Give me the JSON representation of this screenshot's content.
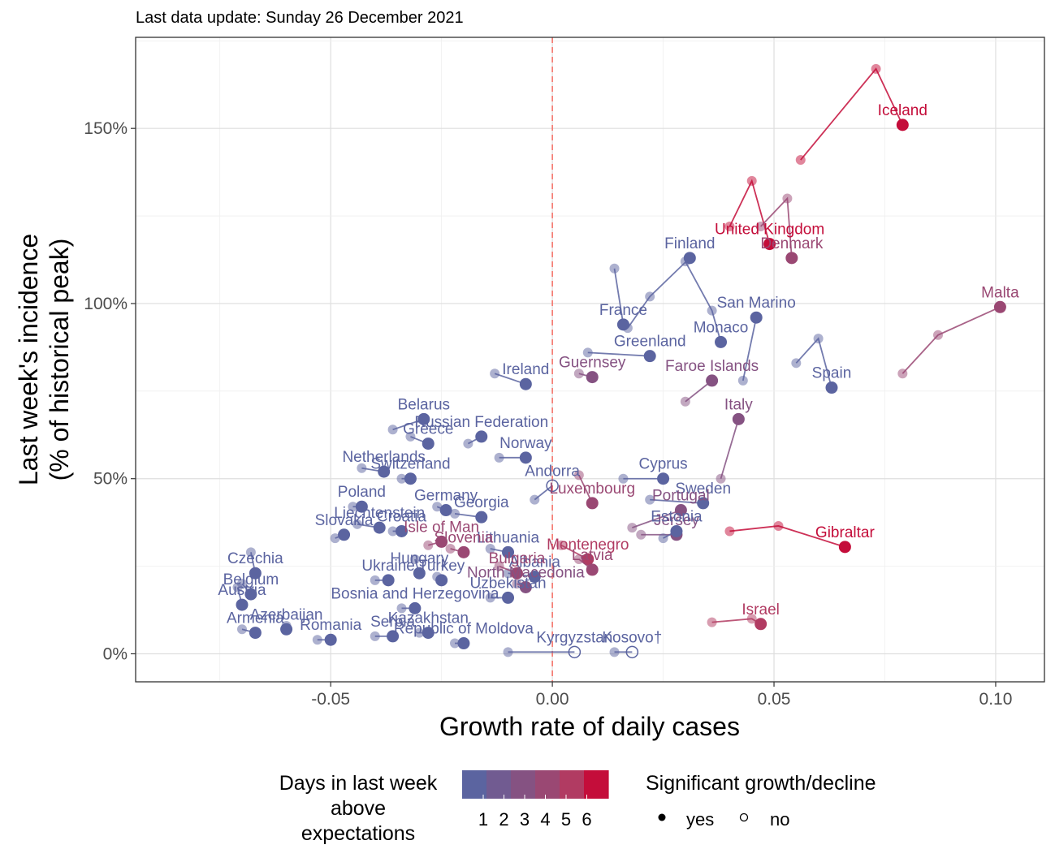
{
  "subtitle": "Last data update: Sunday 26 December 2021",
  "chart_data": {
    "type": "scatter",
    "title": "",
    "subtitle": "Last data update: Sunday 26 December 2021",
    "xlabel": "Growth rate of daily cases",
    "ylabel_line1": "Last week's incidence",
    "ylabel_line2": "(% of historical peak)",
    "xlim": [
      -0.094,
      0.111
    ],
    "ylim": [
      -0.08,
      1.76
    ],
    "x_ticks": [
      {
        "value": -0.05,
        "label": "-0.05"
      },
      {
        "value": 0.0,
        "label": "0.00"
      },
      {
        "value": 0.05,
        "label": "0.05"
      },
      {
        "value": 0.1,
        "label": "0.10"
      }
    ],
    "y_ticks": [
      {
        "value": 0.0,
        "label": "0%"
      },
      {
        "value": 0.5,
        "label": "50%"
      },
      {
        "value": 1.0,
        "label": "100%"
      },
      {
        "value": 1.5,
        "label": "150%"
      }
    ],
    "grid": true,
    "reference_line": {
      "x": 0.0,
      "style": "dashed",
      "color": "#f4736a"
    },
    "legend_color": {
      "title_lines": [
        "Days in last week",
        "above",
        "expectations"
      ],
      "labels": [
        "1",
        "2",
        "3",
        "4",
        "5",
        "6"
      ],
      "colors": [
        "#5b64a0",
        "#715b91",
        "#855282",
        "#9a4873",
        "#b13b62",
        "#c40d3a"
      ]
    },
    "legend_shape": {
      "title": "Significant growth/decline",
      "items": [
        {
          "label": "yes",
          "filled": true
        },
        {
          "label": "no",
          "filled": false
        }
      ]
    },
    "countries": [
      {
        "name": "Iceland",
        "level": 6,
        "sig": true,
        "label": "Iceland",
        "trail": [
          [
            0.056,
            1.41
          ],
          [
            0.073,
            1.67
          ],
          [
            0.079,
            1.51
          ]
        ]
      },
      {
        "name": "United Kingdom",
        "level": 6,
        "sig": true,
        "label": "United Kingdom",
        "trail": [
          [
            0.04,
            1.22
          ],
          [
            0.045,
            1.35
          ],
          [
            0.049,
            1.17
          ]
        ]
      },
      {
        "name": "Denmark",
        "level": 4,
        "sig": true,
        "label": "Denmark",
        "trail": [
          [
            0.047,
            1.22
          ],
          [
            0.053,
            1.3
          ],
          [
            0.054,
            1.13
          ]
        ]
      },
      {
        "name": "Malta",
        "level": 4,
        "sig": true,
        "label": "Malta",
        "trail": [
          [
            0.079,
            0.8
          ],
          [
            0.087,
            0.91
          ],
          [
            0.101,
            0.99
          ]
        ]
      },
      {
        "name": "Gibraltar",
        "level": 6,
        "sig": true,
        "label": "Gibraltar",
        "trail": [
          [
            0.04,
            0.35
          ],
          [
            0.051,
            0.365
          ],
          [
            0.066,
            0.305
          ]
        ]
      },
      {
        "name": "Israel",
        "level": 5,
        "sig": true,
        "label": "Israel",
        "trail": [
          [
            0.036,
            0.09
          ],
          [
            0.045,
            0.1
          ],
          [
            0.047,
            0.085
          ]
        ]
      },
      {
        "name": "Spain",
        "level": 1,
        "sig": true,
        "label": "Spain",
        "trail": [
          [
            0.055,
            0.83
          ],
          [
            0.06,
            0.9
          ],
          [
            0.063,
            0.76
          ]
        ]
      },
      {
        "name": "Monaco",
        "level": 1,
        "sig": true,
        "label": "Monaco",
        "trail": [
          [
            0.03,
            1.12
          ],
          [
            0.036,
            0.98
          ],
          [
            0.038,
            0.89
          ]
        ]
      },
      {
        "name": "Finland",
        "level": 1,
        "sig": true,
        "label": "Finland",
        "trail": [
          [
            0.017,
            0.93
          ],
          [
            0.022,
            1.02
          ],
          [
            0.031,
            1.13
          ]
        ]
      },
      {
        "name": "France",
        "level": 1,
        "sig": true,
        "label": "France",
        "trail": [
          [
            0.014,
            1.1
          ],
          [
            0.016,
            0.94
          ]
        ]
      },
      {
        "name": "San Marino",
        "level": 1,
        "sig": true,
        "label": "San Marino",
        "trail": [
          [
            0.043,
            0.78
          ],
          [
            0.046,
            0.96
          ]
        ]
      },
      {
        "name": "Greenland",
        "level": 1,
        "sig": true,
        "label": "Greenland",
        "trail": [
          [
            0.008,
            0.86
          ],
          [
            0.022,
            0.85
          ]
        ]
      },
      {
        "name": "Ireland",
        "level": 1,
        "sig": true,
        "label": "Ireland",
        "trail": [
          [
            -0.013,
            0.8
          ],
          [
            -0.006,
            0.77
          ]
        ]
      },
      {
        "name": "Faroe Islands",
        "level": 3,
        "sig": true,
        "label": "Faroe Islands",
        "trail": [
          [
            0.03,
            0.72
          ],
          [
            0.036,
            0.78
          ]
        ]
      },
      {
        "name": "Italy",
        "level": 3,
        "sig": true,
        "label": "Italy",
        "trail": [
          [
            0.038,
            0.5
          ],
          [
            0.042,
            0.67
          ]
        ]
      },
      {
        "name": "Cyprus",
        "level": 1,
        "sig": true,
        "label": "Cyprus",
        "trail": [
          [
            0.016,
            0.5
          ],
          [
            0.025,
            0.5
          ]
        ]
      },
      {
        "name": "Sweden",
        "level": 1,
        "sig": true,
        "label": "Sweden",
        "trail": [
          [
            0.022,
            0.44
          ],
          [
            0.034,
            0.43
          ]
        ]
      },
      {
        "name": "Luxembourg",
        "level": 4,
        "sig": true,
        "label": "Luxembourg",
        "trail": [
          [
            0.006,
            0.51
          ],
          [
            0.009,
            0.43
          ]
        ]
      },
      {
        "name": "Portugal",
        "level": 3,
        "sig": true,
        "label": "Portugal",
        "trail": [
          [
            0.018,
            0.36
          ],
          [
            0.029,
            0.41
          ]
        ]
      },
      {
        "name": "Jersey",
        "level": 3,
        "sig": true,
        "label": "Jersey",
        "trail": [
          [
            0.02,
            0.34
          ],
          [
            0.028,
            0.34
          ]
        ]
      },
      {
        "name": "Estonia",
        "level": 1,
        "sig": true,
        "label": "Estonia",
        "trail": [
          [
            0.025,
            0.33
          ],
          [
            0.028,
            0.35
          ]
        ]
      },
      {
        "name": "Montenegro",
        "level": 5,
        "sig": true,
        "label": "Montenegro",
        "trail": [
          [
            0.002,
            0.31
          ],
          [
            0.008,
            0.27
          ]
        ]
      },
      {
        "name": "Latvia",
        "level": 4,
        "sig": true,
        "label": "Latvia",
        "trail": [
          [
            0.006,
            0.27
          ],
          [
            0.009,
            0.24
          ]
        ]
      },
      {
        "name": "Albania",
        "level": 1,
        "sig": true,
        "label": "Albania",
        "trail": [
          [
            -0.01,
            0.23
          ],
          [
            -0.004,
            0.22
          ]
        ]
      },
      {
        "name": "Bulgaria",
        "level": 4,
        "sig": true,
        "label": "Bulgaria",
        "trail": [
          [
            -0.012,
            0.25
          ],
          [
            -0.008,
            0.23
          ]
        ]
      },
      {
        "name": "Lithuania",
        "level": 1,
        "sig": true,
        "label": "Lithuania",
        "trail": [
          [
            -0.014,
            0.3
          ],
          [
            -0.01,
            0.29
          ]
        ]
      },
      {
        "name": "Georgia",
        "level": 1,
        "sig": true,
        "label": "Georgia",
        "trail": [
          [
            -0.022,
            0.4
          ],
          [
            -0.016,
            0.39
          ]
        ]
      },
      {
        "name": "Andorra",
        "level": 1,
        "sig": false,
        "label": "Andorra",
        "trail": [
          [
            -0.004,
            0.44
          ],
          [
            0.0,
            0.48
          ]
        ]
      },
      {
        "name": "Norway",
        "level": 1,
        "sig": true,
        "label": "Norway",
        "trail": [
          [
            -0.012,
            0.56
          ],
          [
            -0.006,
            0.56
          ]
        ]
      },
      {
        "name": "Russian Federation",
        "level": 1,
        "sig": true,
        "label": "Russian Federation",
        "trail": [
          [
            -0.019,
            0.6
          ],
          [
            -0.016,
            0.62
          ]
        ]
      },
      {
        "name": "Guernsey",
        "level": 3,
        "sig": true,
        "label": "Guernsey",
        "trail": [
          [
            0.006,
            0.8
          ],
          [
            0.009,
            0.79
          ]
        ]
      },
      {
        "name": "Belarus",
        "level": 1,
        "sig": true,
        "label": "Belarus",
        "trail": [
          [
            -0.036,
            0.64
          ],
          [
            -0.029,
            0.67
          ]
        ]
      },
      {
        "name": "Greece",
        "level": 1,
        "sig": true,
        "label": "Greece",
        "trail": [
          [
            -0.032,
            0.62
          ],
          [
            -0.028,
            0.6
          ]
        ]
      },
      {
        "name": "Germany",
        "level": 1,
        "sig": true,
        "label": "Germany",
        "trail": [
          [
            -0.026,
            0.42
          ],
          [
            -0.024,
            0.41
          ]
        ]
      },
      {
        "name": "Netherlands",
        "level": 1,
        "sig": true,
        "label": "Netherlands",
        "trail": [
          [
            -0.043,
            0.53
          ],
          [
            -0.038,
            0.52
          ]
        ]
      },
      {
        "name": "Switzerland",
        "level": 1,
        "sig": true,
        "label": "Switzerland",
        "trail": [
          [
            -0.034,
            0.5
          ],
          [
            -0.032,
            0.5
          ]
        ]
      },
      {
        "name": "Poland",
        "level": 1,
        "sig": true,
        "label": "Poland",
        "trail": [
          [
            -0.045,
            0.42
          ],
          [
            -0.043,
            0.42
          ]
        ]
      },
      {
        "name": "Liechtenstein",
        "level": 1,
        "sig": true,
        "label": "Liechtenstein",
        "trail": [
          [
            -0.044,
            0.37
          ],
          [
            -0.039,
            0.36
          ]
        ]
      },
      {
        "name": "Croatia",
        "level": 1,
        "sig": true,
        "label": "Croatia",
        "trail": [
          [
            -0.036,
            0.35
          ],
          [
            -0.034,
            0.35
          ]
        ]
      },
      {
        "name": "Slovakia",
        "level": 1,
        "sig": true,
        "label": "Slovakia",
        "trail": [
          [
            -0.049,
            0.33
          ],
          [
            -0.047,
            0.34
          ]
        ]
      },
      {
        "name": "Isle of Man",
        "level": 4,
        "sig": true,
        "label": "Isle of Man",
        "trail": [
          [
            -0.028,
            0.31
          ],
          [
            -0.025,
            0.32
          ]
        ]
      },
      {
        "name": "Slovenia",
        "level": 4,
        "sig": true,
        "label": "Slovenia",
        "trail": [
          [
            -0.023,
            0.3
          ],
          [
            -0.02,
            0.29
          ]
        ]
      },
      {
        "name": "Czechia",
        "level": 1,
        "sig": true,
        "label": "Czechia",
        "trail": [
          [
            -0.068,
            0.29
          ],
          [
            -0.067,
            0.23
          ]
        ]
      },
      {
        "name": "Belgium",
        "level": 1,
        "sig": true,
        "label": "Belgium",
        "trail": [
          [
            -0.07,
            0.2
          ],
          [
            -0.068,
            0.17
          ]
        ]
      },
      {
        "name": "Austria",
        "level": 1,
        "sig": true,
        "label": "Austria",
        "trail": [
          [
            -0.071,
            0.19
          ],
          [
            -0.07,
            0.14
          ]
        ]
      },
      {
        "name": "Hungary",
        "level": 1,
        "sig": true,
        "label": "Hungary",
        "trail": [
          [
            -0.031,
            0.27
          ],
          [
            -0.03,
            0.23
          ]
        ]
      },
      {
        "name": "Turkey",
        "level": 1,
        "sig": true,
        "label": "Turkey",
        "trail": [
          [
            -0.026,
            0.22
          ],
          [
            -0.025,
            0.21
          ]
        ]
      },
      {
        "name": "Ukraine",
        "level": 1,
        "sig": true,
        "label": "Ukraine",
        "trail": [
          [
            -0.04,
            0.21
          ],
          [
            -0.037,
            0.21
          ]
        ]
      },
      {
        "name": "Azerbaijan",
        "level": 1,
        "sig": true,
        "label": "Azerbaijan",
        "trail": [
          [
            -0.06,
            0.08
          ],
          [
            -0.06,
            0.07
          ]
        ]
      },
      {
        "name": "Armenia",
        "level": 1,
        "sig": true,
        "label": "Armenia",
        "trail": [
          [
            -0.07,
            0.07
          ],
          [
            -0.067,
            0.06
          ]
        ]
      },
      {
        "name": "Bosnia and Herzegovina",
        "level": 1,
        "sig": true,
        "label": "Bosnia and Herzegovina",
        "trail": [
          [
            -0.034,
            0.13
          ],
          [
            -0.031,
            0.13
          ]
        ]
      },
      {
        "name": "Serbia",
        "level": 1,
        "sig": true,
        "label": "Serbia",
        "trail": [
          [
            -0.04,
            0.05
          ],
          [
            -0.036,
            0.05
          ]
        ]
      },
      {
        "name": "Romania",
        "level": 1,
        "sig": true,
        "label": "Romania",
        "trail": [
          [
            -0.053,
            0.04
          ],
          [
            -0.05,
            0.04
          ]
        ]
      },
      {
        "name": "Kazakhstan",
        "level": 1,
        "sig": true,
        "label": "Kazakhstan",
        "trail": [
          [
            -0.03,
            0.06
          ],
          [
            -0.028,
            0.06
          ]
        ]
      },
      {
        "name": "Republic of Moldova",
        "level": 1,
        "sig": true,
        "label": "Republic of Moldova",
        "trail": [
          [
            -0.022,
            0.03
          ],
          [
            -0.02,
            0.03
          ]
        ]
      },
      {
        "name": "Uzbekistan",
        "level": 1,
        "sig": true,
        "label": "Uzbekistan",
        "trail": [
          [
            -0.014,
            0.16
          ],
          [
            -0.01,
            0.16
          ]
        ]
      },
      {
        "name": "North Macedonia",
        "level": 3,
        "sig": true,
        "label": "North Macedonia",
        "trail": [
          [
            -0.008,
            0.2
          ],
          [
            -0.006,
            0.19
          ]
        ]
      },
      {
        "name": "Kyrgyzstan",
        "level": 1,
        "sig": false,
        "label": "Kyrgyzstan",
        "trail": [
          [
            -0.01,
            0.005
          ],
          [
            0.005,
            0.005
          ]
        ]
      },
      {
        "name": "Kosovo†",
        "level": 1,
        "sig": false,
        "label": "Kosovo†",
        "trail": [
          [
            0.014,
            0.005
          ],
          [
            0.018,
            0.005
          ]
        ]
      }
    ]
  }
}
